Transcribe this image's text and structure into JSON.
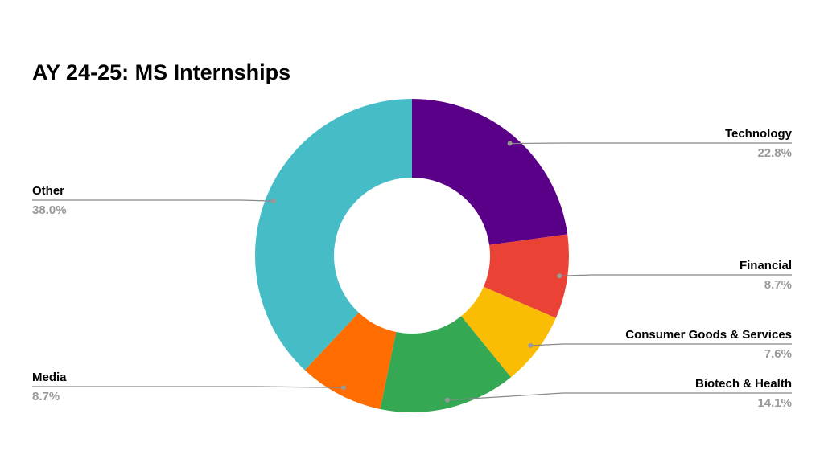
{
  "chart_data": {
    "type": "donut",
    "title": "AY 24-25: MS Internships",
    "categories": [
      "Technology",
      "Financial",
      "Consumer Goods & Services",
      "Biotech & Health",
      "Media",
      "Other"
    ],
    "values": [
      22.8,
      8.7,
      7.6,
      14.1,
      8.7,
      38.0
    ],
    "value_labels": [
      "22.8%",
      "8.7%",
      "7.6%",
      "14.1%",
      "8.7%",
      "38.0%"
    ],
    "colors": [
      "#5a0088",
      "#ea4335",
      "#fbbc04",
      "#34a853",
      "#ff6d01",
      "#46bdc6"
    ]
  }
}
